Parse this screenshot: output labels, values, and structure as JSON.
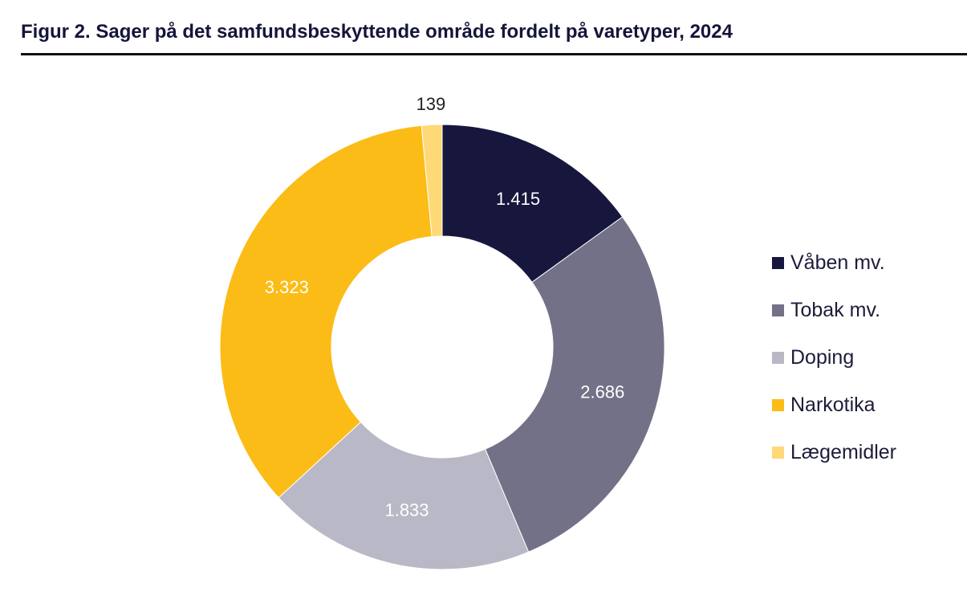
{
  "title": "Figur 2. Sager på det samfundsbeskyttende område fordelt på varetyper, 2024",
  "chart_data": {
    "type": "pie",
    "donut": true,
    "title": "Figur 2. Sager på det samfundsbeskyttende område fordelt på varetyper, 2024",
    "legend_position": "right",
    "slices": [
      {
        "name": "Våben mv.",
        "value": 1415,
        "label": "1.415",
        "color": "#17173e",
        "label_color": "#ffffff"
      },
      {
        "name": "Tobak mv.",
        "value": 2686,
        "label": "2.686",
        "color": "#727188",
        "label_color": "#ffffff"
      },
      {
        "name": "Doping",
        "value": 1833,
        "label": "1.833",
        "color": "#b9b8c6",
        "label_color": "#ffffff"
      },
      {
        "name": "Narkotika",
        "value": 3323,
        "label": "3.323",
        "color": "#fcbc17",
        "label_color": "#ffffff"
      },
      {
        "name": "Lægemidler",
        "value": 139,
        "label": "139",
        "color": "#ffd877",
        "label_color": "#222222"
      }
    ]
  }
}
